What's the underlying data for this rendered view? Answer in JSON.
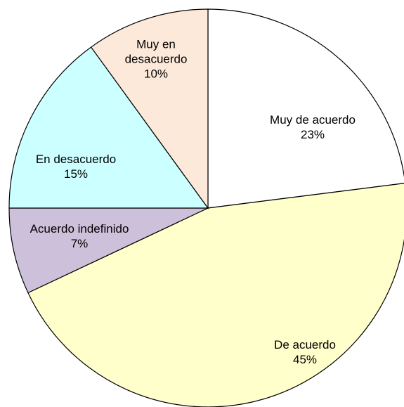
{
  "chart_data": {
    "type": "pie",
    "categories": [
      "Muy de acuerdo",
      "De acuerdo",
      "Acuerdo indefinido",
      "En desacuerdo",
      "Muy en desacuerdo"
    ],
    "values": [
      23,
      45,
      7,
      15,
      10
    ],
    "value_labels": [
      "23%",
      "45%",
      "7%",
      "15%",
      "10%"
    ],
    "colors": [
      "#ffffff",
      "#ffffcc",
      "#ccc0da",
      "#ccffff",
      "#fde9d9"
    ],
    "start_angle": 90,
    "direction": "clockwise"
  }
}
